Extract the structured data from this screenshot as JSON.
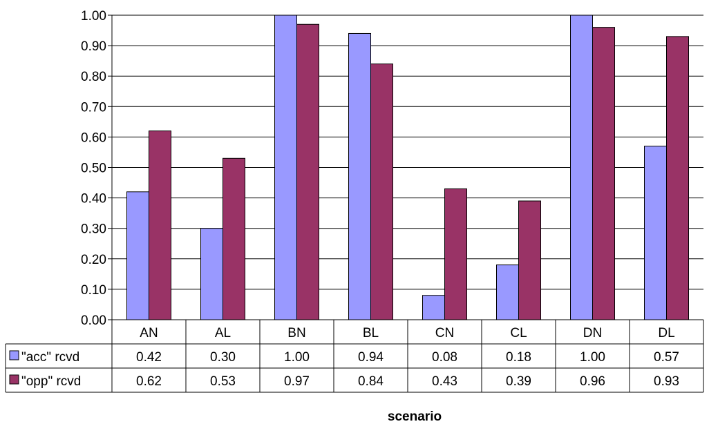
{
  "chart_data": {
    "type": "bar",
    "categories": [
      "AN",
      "AL",
      "BN",
      "BL",
      "CN",
      "CL",
      "DN",
      "DL"
    ],
    "series": [
      {
        "name": "\"acc\" rcvd",
        "values": [
          0.42,
          0.3,
          1.0,
          0.94,
          0.08,
          0.18,
          1.0,
          0.57
        ],
        "color": "#9999ff"
      },
      {
        "name": "\"opp\" rcvd",
        "values": [
          0.62,
          0.53,
          0.97,
          0.84,
          0.43,
          0.39,
          0.96,
          0.93
        ],
        "color": "#993366"
      }
    ],
    "table_values": [
      [
        "0.42",
        "0.30",
        "1.00",
        "0.94",
        "0.08",
        "0.18",
        "1.00",
        "0.57"
      ],
      [
        "0.62",
        "0.53",
        "0.97",
        "0.84",
        "0.43",
        "0.39",
        "0.96",
        "0.93"
      ]
    ],
    "y_ticks": [
      "0.00",
      "0.10",
      "0.20",
      "0.30",
      "0.40",
      "0.50",
      "0.60",
      "0.70",
      "0.80",
      "0.90",
      "1.00"
    ],
    "ylim": [
      0,
      1
    ],
    "xlabel": "scenario",
    "ylabel": "",
    "title": "",
    "grid": true,
    "legend": "data-table"
  }
}
